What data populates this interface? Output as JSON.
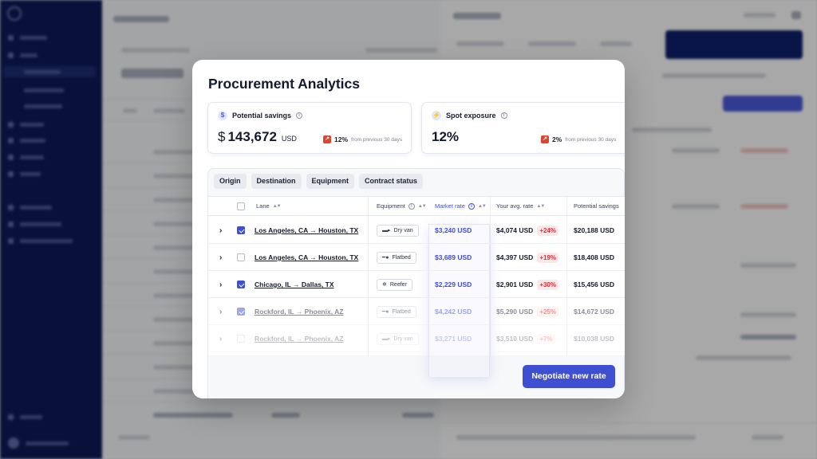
{
  "modal": {
    "title": "Procurement Analytics",
    "cards": [
      {
        "title": "Potential savings",
        "icon": "dollar-icon",
        "currency": "$",
        "value": "143,672",
        "unit": "USD",
        "trend_value": "12%",
        "trend_text": "from previous 30 days"
      },
      {
        "title": "Spot exposure",
        "icon": "lightning-icon",
        "value": "12%",
        "trend_value": "2%",
        "trend_text": "from previous 30 days"
      }
    ],
    "filters": [
      "Origin",
      "Destination",
      "Equipment",
      "Contract status"
    ],
    "table": {
      "columns": [
        "Lane",
        "Equipment",
        "Market rate",
        "Your avg. rate",
        "Potential savings"
      ],
      "rows": [
        {
          "checked": true,
          "lane": "Los Angeles, CA → Houston, TX",
          "equipment": "Dry van",
          "equipment_icon": "truck-icon",
          "market_rate": "$3,240 USD",
          "avg_rate": "$4,074 USD",
          "delta": "+24%",
          "savings": "$20,188 USD"
        },
        {
          "checked": false,
          "lane": "Los Angeles, CA → Houston, TX",
          "equipment": "Flatbed",
          "equipment_icon": "flatbed-icon",
          "market_rate": "$3,689 USD",
          "avg_rate": "$4,397 USD",
          "delta": "+19%",
          "savings": "$18,408 USD"
        },
        {
          "checked": true,
          "lane": "Chicago, IL → Dallas, TX",
          "equipment": "Reefer",
          "equipment_icon": "snowflake-icon",
          "market_rate": "$2,229 USD",
          "avg_rate": "$2,901 USD",
          "delta": "+30%",
          "savings": "$15,456 USD"
        },
        {
          "checked": true,
          "lane": "Rockford, IL → Phoenix, AZ",
          "equipment": "Flatbed",
          "equipment_icon": "flatbed-icon",
          "market_rate": "$4,242 USD",
          "avg_rate": "$5,290 USD",
          "delta": "+25%",
          "savings": "$14,672 USD"
        },
        {
          "checked": false,
          "lane": "Rockford, IL → Phoenix, AZ",
          "equipment": "Dry van",
          "equipment_icon": "truck-icon",
          "market_rate": "$3,271 USD",
          "avg_rate": "$3,510 USD",
          "delta": "+7%",
          "savings": "$10,038 USD"
        }
      ]
    },
    "cta_label": "Negotiate new rate"
  },
  "colors": {
    "accent": "#3e4fd2",
    "sidebar": "#0c1a56",
    "negative": "#d6303b",
    "trend_up": "#e0442f"
  }
}
